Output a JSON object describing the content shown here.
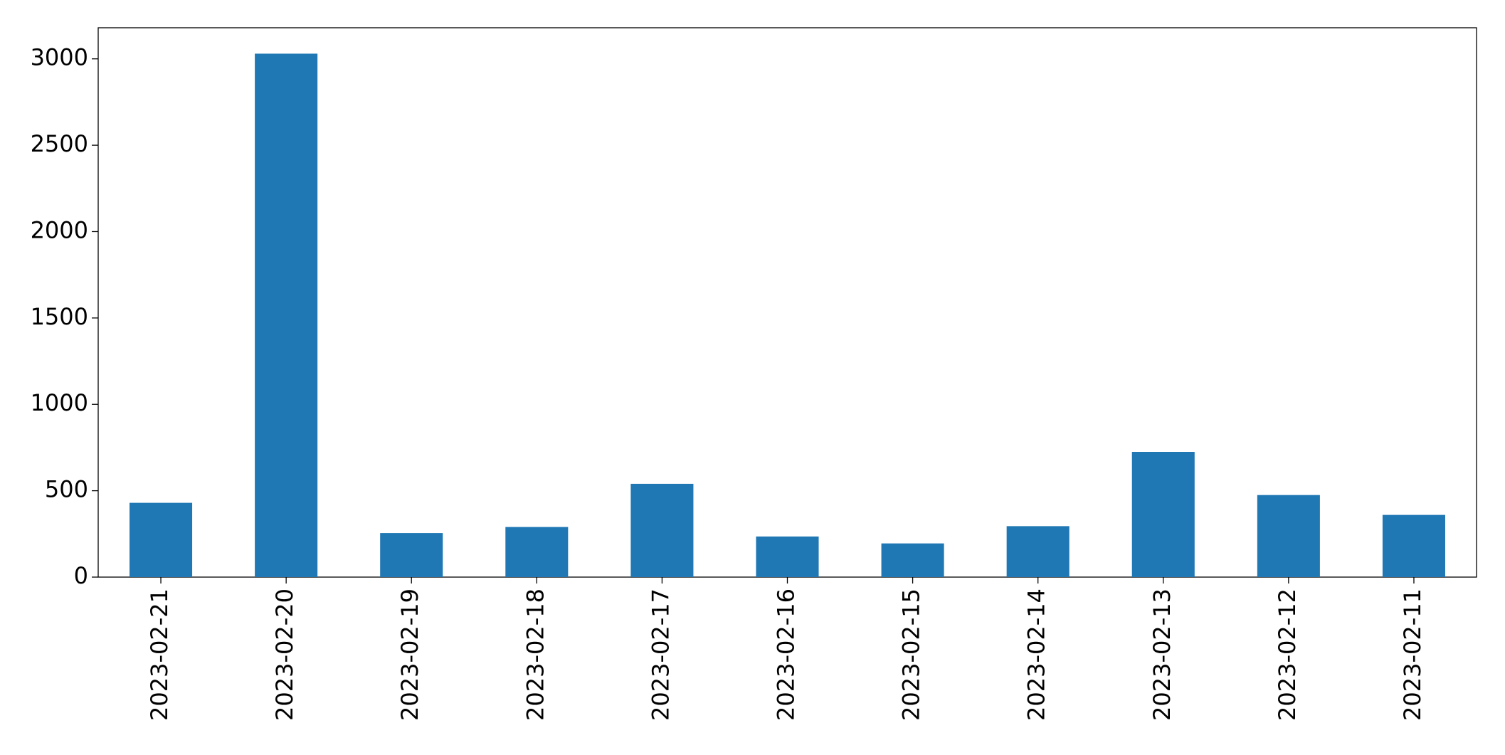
{
  "chart_data": {
    "type": "bar",
    "categories": [
      "2023-02-21",
      "2023-02-20",
      "2023-02-19",
      "2023-02-18",
      "2023-02-17",
      "2023-02-16",
      "2023-02-15",
      "2023-02-14",
      "2023-02-13",
      "2023-02-12",
      "2023-02-11"
    ],
    "values": [
      430,
      3030,
      255,
      290,
      540,
      235,
      195,
      295,
      725,
      475,
      360
    ],
    "color": "#1f77b4",
    "ylim": [
      0,
      3180
    ],
    "yticks": [
      0,
      500,
      1000,
      1500,
      2000,
      2500,
      3000
    ],
    "grid": false
  }
}
